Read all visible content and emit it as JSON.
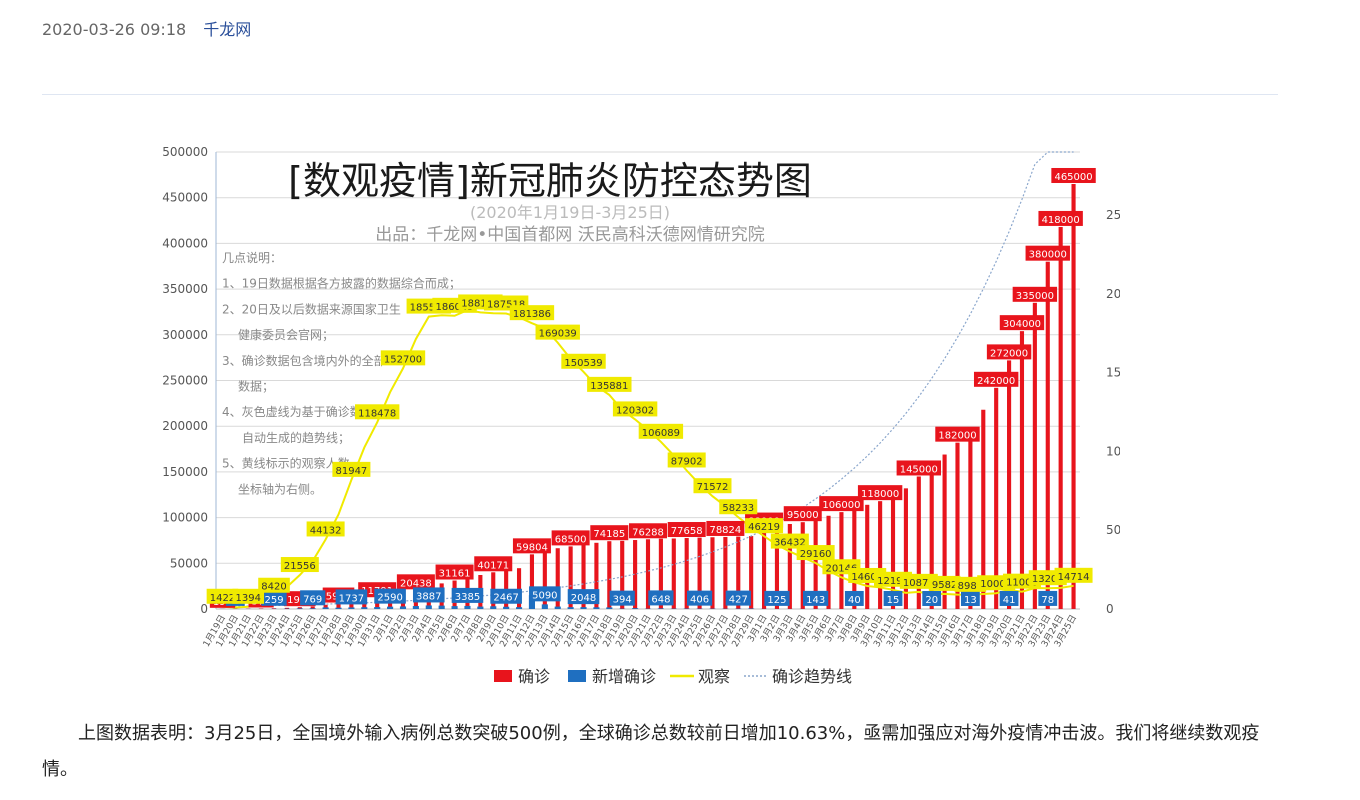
{
  "article": {
    "datetime": "2020-03-26 09:18",
    "source": "千龙网",
    "paragraph": "上图数据表明：3月25日，全国境外输入病例总数突破500例，全球确诊总数较前日增加10.63%，亟需加强应对海外疫情冲击波。我们将继续数观疫情。"
  },
  "chart_data": {
    "type": "bar",
    "title": "[数观疫情]新冠肺炎防控态势图",
    "subtitle": "(2020年1月19日-3月25日)",
    "credit": "出品：千龙网•中国首都网   沃民高科沃德网情研究院",
    "notes": [
      "几点说明：",
      "1、19日数据根据各方披露的数据综合而成；",
      "2、20日及以后数据来源国家卫生",
      "健康委员会官网；",
      "3、确诊数据包含境内外的全部",
      "数据；",
      "4、灰色虚线为基于确诊数据",
      "自动生成的趋势线；",
      "5、黄线标示的观察人数",
      "坐标轴为右侧。"
    ],
    "categories": [
      "1月19日",
      "1月20日",
      "1月21日",
      "1月22日",
      "1月23日",
      "1月24日",
      "1月25日",
      "1月26日",
      "1月27日",
      "1月28日",
      "1月29日",
      "1月30日",
      "1月31日",
      "2月1日",
      "2月2日",
      "2月3日",
      "2月4日",
      "2月5日",
      "2月6日",
      "2月7日",
      "2月8日",
      "2月9日",
      "2月10日",
      "2月11日",
      "2月12日",
      "2月13日",
      "2月14日",
      "2月15日",
      "2月16日",
      "2月17日",
      "2月18日",
      "2月19日",
      "2月20日",
      "2月21日",
      "2月22日",
      "2月23日",
      "2月24日",
      "2月25日",
      "2月26日",
      "2月27日",
      "2月28日",
      "2月29日",
      "3月1日",
      "3月2日",
      "3月3日",
      "3月4日",
      "3月5日",
      "3月6日",
      "3月7日",
      "3月8日",
      "3月9日",
      "3月10日",
      "3月11日",
      "3月12日",
      "3月13日",
      "3月14日",
      "3月15日",
      "3月16日",
      "3月17日",
      "3月18日",
      "3月19日",
      "3月20日",
      "3月21日",
      "3月22日",
      "3月23日",
      "3月24日",
      "3月25日"
    ],
    "left_axis": {
      "min": 0,
      "max": 500000,
      "ticks": [
        0,
        50000,
        100000,
        150000,
        200000,
        250000,
        300000,
        350000,
        400000,
        450000,
        500000
      ]
    },
    "right_axis": {
      "min": 0,
      "max": 290000,
      "ticks": [
        0,
        50000,
        100000,
        150000,
        200000,
        250000
      ]
    },
    "series": [
      {
        "name": "确诊",
        "axis": "left",
        "color": "#e8141c",
        "values": [
          198,
          291,
          440,
          571,
          830,
          1287,
          1975,
          2744,
          4515,
          5974,
          7711,
          9692,
          11791,
          14380,
          17205,
          20438,
          24324,
          28018,
          31161,
          34546,
          37198,
          40171,
          42638,
          44653,
          59804,
          63851,
          66492,
          68500,
          70548,
          72436,
          74185,
          74576,
          75465,
          76288,
          76936,
          77150,
          77658,
          78064,
          78497,
          78824,
          79251,
          79824,
          88000,
          90000,
          93000,
          95000,
          98000,
          102000,
          106000,
          110000,
          114000,
          118000,
          125000,
          132000,
          145000,
          156000,
          169000,
          182000,
          198000,
          218000,
          242000,
          272000,
          304000,
          335000,
          380000,
          418000,
          465000
        ]
      },
      {
        "name": "新增确诊",
        "axis": "left",
        "color": "#1f6fc0",
        "values": [
          136,
          93,
          149,
          131,
          259,
          444,
          688,
          769,
          1771,
          1459,
          1737,
          1982,
          2102,
          2590,
          2829,
          3235,
          3887,
          3694,
          3143,
          3385,
          2652,
          2973,
          2467,
          2015,
          15152,
          5090,
          2641,
          2009,
          2048,
          1886,
          1749,
          394,
          889,
          397,
          648,
          409,
          508,
          406,
          433,
          327,
          427,
          573,
          202,
          125,
          119,
          139,
          143,
          99,
          44,
          40,
          19,
          24,
          15,
          8,
          11,
          20,
          16,
          21,
          13,
          34,
          39,
          41,
          46,
          39,
          78,
          47,
          67
        ]
      },
      {
        "name": "观察",
        "axis": "right",
        "color": "#f0ea00",
        "values": [
          1422,
          922,
          1394,
          4928,
          8420,
          13967,
          21556,
          30453,
          44132,
          59990,
          81947,
          102427,
          118478,
          137594,
          152700,
          171329,
          185555,
          186354,
          186045,
          189660,
          188183,
          187728,
          187518,
          185037,
          181386,
          177984,
          169039,
          158764,
          150539,
          141552,
          135881,
          126363,
          120302,
          113564,
          106089,
          97481,
          87902,
          79108,
          71572,
          65225,
          58233,
          51856,
          46219,
          40651,
          36432,
          32828,
          29160,
          24174,
          20146,
          16982,
          14607,
          13701,
          12196,
          10189,
          10879,
          9351,
          9582,
          9144,
          8989,
          9500,
          10000,
          12077,
          11000,
          13356,
          13200,
          13400,
          14714
        ]
      },
      {
        "name": "确诊趋势线",
        "axis": "left",
        "color": "#8aa6cc",
        "dashed": true,
        "derived": "trend"
      }
    ],
    "legend": "bottom",
    "grid": true
  }
}
